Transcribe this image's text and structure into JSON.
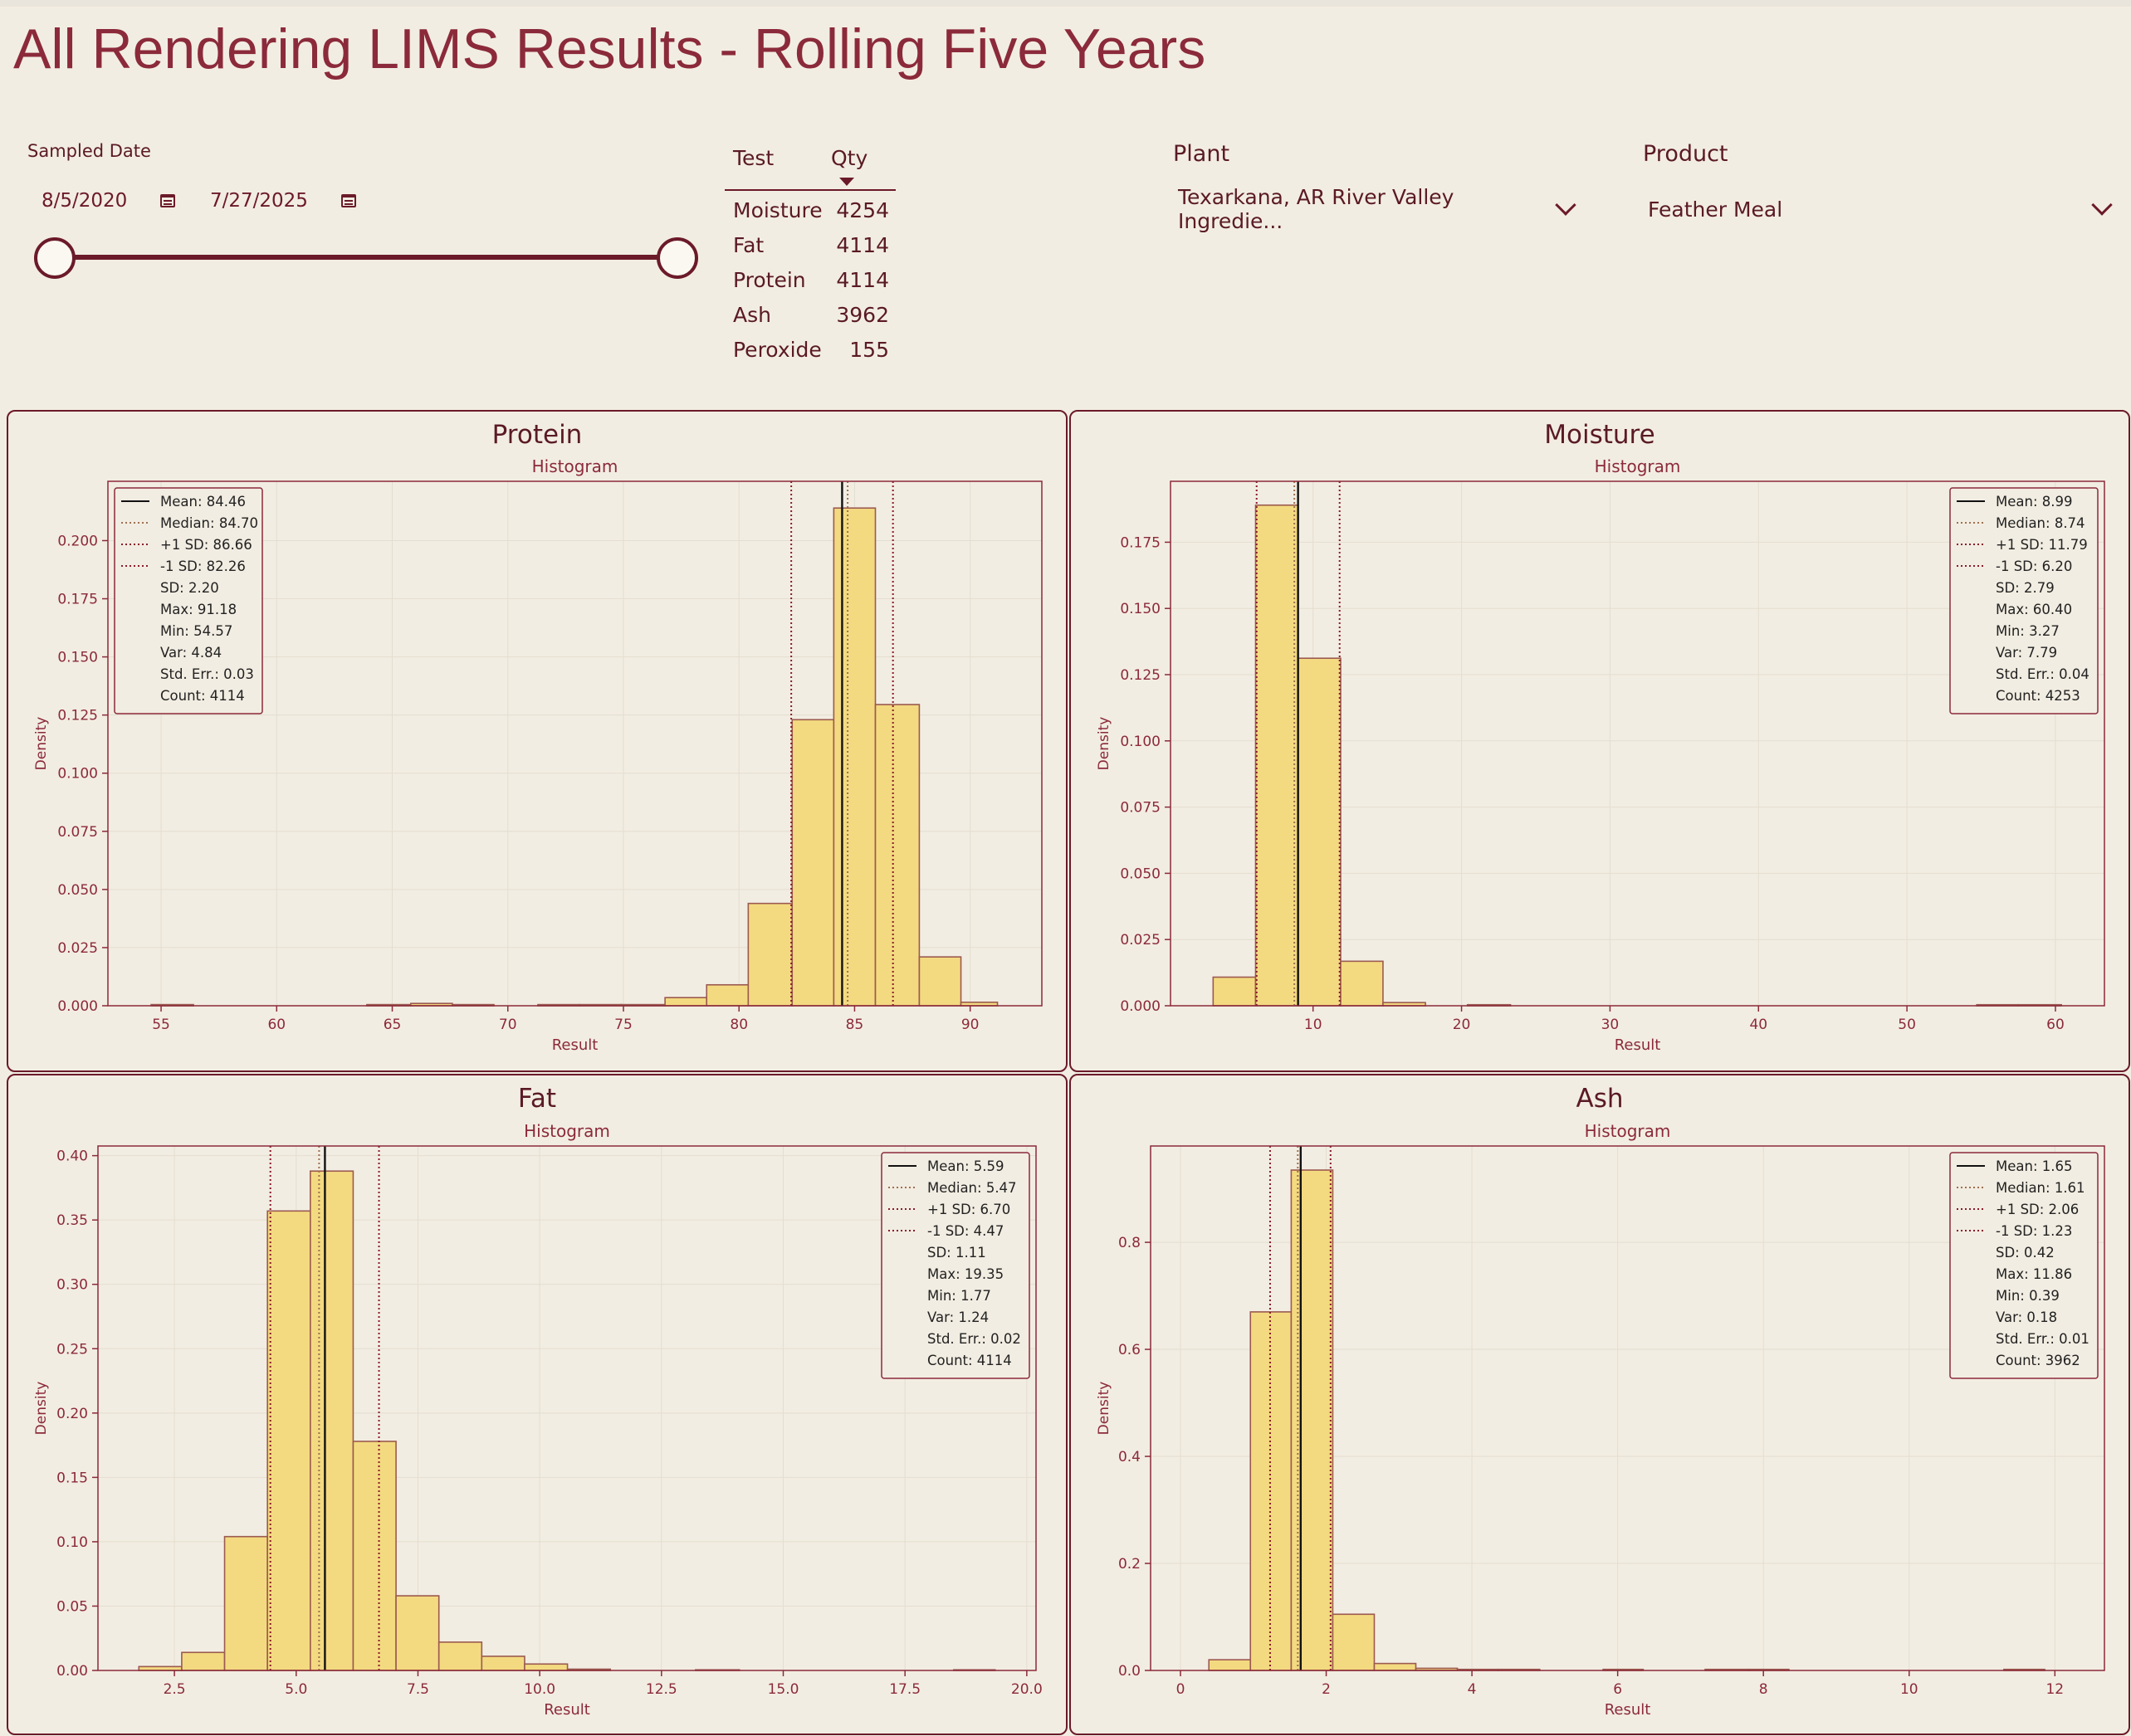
{
  "title": "All Rendering LIMS Results - Rolling Five Years",
  "sampled_date": {
    "label": "Sampled Date",
    "start": "8/5/2020",
    "end": "7/27/2025",
    "start_icon": "calendar-icon",
    "end_icon": "calendar-icon"
  },
  "qty_table": {
    "headers": [
      "Test",
      "Qty"
    ],
    "rows": [
      {
        "test": "Moisture",
        "qty": "4254"
      },
      {
        "test": "Fat",
        "qty": "4114"
      },
      {
        "test": "Protein",
        "qty": "4114"
      },
      {
        "test": "Ash",
        "qty": "3962"
      },
      {
        "test": "Peroxide",
        "qty": "155"
      }
    ]
  },
  "plant": {
    "label": "Plant",
    "value": "Texarkana, AR River Valley Ingredie..."
  },
  "product": {
    "label": "Product",
    "value": "Feather Meal"
  },
  "colors": {
    "bar": "#f3da80",
    "bar_edge": "#9b5a50",
    "accent": "#6b1a2a",
    "background": "#f2ede2"
  },
  "chart_data": [
    {
      "type": "bar",
      "panel_title": "Protein",
      "title": "Histogram",
      "xlabel": "Result",
      "ylabel": "Density",
      "xlim": [
        52.7,
        93.1
      ],
      "ylim": [
        0,
        0.2255
      ],
      "xticks": [
        55,
        60,
        65,
        70,
        75,
        80,
        85,
        90
      ],
      "xtick_labels": [
        "55",
        "60",
        "65",
        "70",
        "75",
        "80",
        "85",
        "90"
      ],
      "yticks": [
        0,
        0.025,
        0.05,
        0.075,
        0.1,
        0.125,
        0.15,
        0.175,
        0.2
      ],
      "ytick_labels": [
        "0.000",
        "0.025",
        "0.050",
        "0.075",
        "0.100",
        "0.125",
        "0.150",
        "0.175",
        "0.200"
      ],
      "bins": [
        [
          54.57,
          56.4,
          0.0005
        ],
        [
          63.9,
          65.8,
          0.0005
        ],
        [
          65.8,
          67.6,
          0.001
        ],
        [
          67.6,
          69.4,
          0.0005
        ],
        [
          71.3,
          73.1,
          0.0005
        ],
        [
          73.1,
          74.9,
          0.0005
        ],
        [
          74.9,
          76.8,
          0.0005
        ],
        [
          76.8,
          78.6,
          0.0035
        ],
        [
          78.6,
          80.4,
          0.009
        ],
        [
          80.4,
          82.3,
          0.044
        ],
        [
          82.3,
          84.1,
          0.123
        ],
        [
          84.1,
          85.9,
          0.214
        ],
        [
          85.9,
          87.8,
          0.1295
        ],
        [
          87.8,
          89.6,
          0.021
        ],
        [
          89.6,
          91.18,
          0.0015
        ]
      ],
      "lines": {
        "mean": 84.46,
        "median": 84.7,
        "plus_sd": 86.66,
        "minus_sd": 82.26
      },
      "legend_position": "upper-left",
      "legend": [
        "Mean: 84.46",
        "Median: 84.70",
        "+1 SD: 86.66",
        "-1 SD: 82.26",
        "SD: 2.20",
        "Max: 91.18",
        "Min: 54.57",
        "Var: 4.84",
        "Std. Err.: 0.03",
        "Count: 4114"
      ]
    },
    {
      "type": "bar",
      "panel_title": "Moisture",
      "title": "Histogram",
      "xlabel": "Result",
      "ylabel": "Density",
      "xlim": [
        0.4,
        63.3
      ],
      "ylim": [
        0,
        0.198
      ],
      "xticks": [
        10,
        20,
        30,
        40,
        50,
        60
      ],
      "xtick_labels": [
        "10",
        "20",
        "30",
        "40",
        "50",
        "60"
      ],
      "yticks": [
        0,
        0.025,
        0.05,
        0.075,
        0.1,
        0.125,
        0.15,
        0.175
      ],
      "ytick_labels": [
        "0.000",
        "0.025",
        "0.050",
        "0.075",
        "0.100",
        "0.125",
        "0.150",
        "0.175"
      ],
      "bins": [
        [
          3.27,
          6.13,
          0.0108
        ],
        [
          6.13,
          9.0,
          0.189
        ],
        [
          9.0,
          11.86,
          0.1312
        ],
        [
          11.86,
          14.71,
          0.0168
        ],
        [
          14.71,
          17.57,
          0.0012
        ],
        [
          20.4,
          23.3,
          0.0004
        ],
        [
          54.7,
          57.5,
          0.0004
        ],
        [
          57.5,
          60.4,
          0.0004
        ]
      ],
      "lines": {
        "mean": 8.99,
        "median": 8.74,
        "plus_sd": 11.79,
        "minus_sd": 6.2
      },
      "legend_position": "upper-right",
      "legend": [
        "Mean: 8.99",
        "Median: 8.74",
        "+1 SD: 11.79",
        "-1 SD: 6.20",
        "SD: 2.79",
        "Max: 60.40",
        "Min: 3.27",
        "Var: 7.79",
        "Std. Err.: 0.04",
        "Count: 4253"
      ]
    },
    {
      "type": "bar",
      "panel_title": "Fat",
      "title": "Histogram",
      "xlabel": "Result",
      "ylabel": "Density",
      "xlim": [
        0.93,
        20.19
      ],
      "ylim": [
        0,
        0.4075
      ],
      "xticks": [
        2.5,
        5.0,
        7.5,
        10.0,
        12.5,
        15.0,
        17.5,
        20.0
      ],
      "xtick_labels": [
        "2.5",
        "5.0",
        "7.5",
        "10.0",
        "12.5",
        "15.0",
        "17.5",
        "20.0"
      ],
      "yticks": [
        0,
        0.05,
        0.1,
        0.15,
        0.2,
        0.25,
        0.3,
        0.35,
        0.4
      ],
      "ytick_labels": [
        "0.00",
        "0.05",
        "0.10",
        "0.15",
        "0.20",
        "0.25",
        "0.30",
        "0.35",
        "0.40"
      ],
      "bins": [
        [
          1.77,
          2.65,
          0.003
        ],
        [
          2.65,
          3.53,
          0.014
        ],
        [
          3.53,
          4.41,
          0.104
        ],
        [
          4.41,
          5.29,
          0.357
        ],
        [
          5.29,
          6.17,
          0.388
        ],
        [
          6.17,
          7.05,
          0.178
        ],
        [
          7.05,
          7.93,
          0.058
        ],
        [
          7.93,
          8.81,
          0.022
        ],
        [
          8.81,
          9.69,
          0.011
        ],
        [
          9.69,
          10.57,
          0.005
        ],
        [
          10.57,
          11.45,
          0.001
        ],
        [
          13.2,
          14.1,
          0.0005
        ],
        [
          18.5,
          19.35,
          0.0005
        ]
      ],
      "lines": {
        "mean": 5.59,
        "median": 5.47,
        "plus_sd": 6.7,
        "minus_sd": 4.47
      },
      "legend_position": "upper-right",
      "legend": [
        "Mean: 5.59",
        "Median: 5.47",
        "+1 SD: 6.70",
        "-1 SD: 4.47",
        "SD: 1.11",
        "Max: 19.35",
        "Min: 1.77",
        "Var: 1.24",
        "Std. Err.: 0.02",
        "Count: 4114"
      ]
    },
    {
      "type": "bar",
      "panel_title": "Ash",
      "title": "Histogram",
      "xlabel": "Result",
      "ylabel": "Density",
      "xlim": [
        -0.41,
        12.68
      ],
      "ylim": [
        0,
        0.98
      ],
      "xticks": [
        0,
        2,
        4,
        6,
        8,
        10,
        12
      ],
      "xtick_labels": [
        "0",
        "2",
        "4",
        "6",
        "8",
        "10",
        "12"
      ],
      "yticks": [
        0,
        0.2,
        0.4,
        0.6,
        0.8
      ],
      "ytick_labels": [
        "0.0",
        "0.2",
        "0.4",
        "0.6",
        "0.8"
      ],
      "bins": [
        [
          0.39,
          0.96,
          0.02
        ],
        [
          0.96,
          1.52,
          0.67
        ],
        [
          1.52,
          2.09,
          0.935
        ],
        [
          2.09,
          2.66,
          0.105
        ],
        [
          2.66,
          3.23,
          0.013
        ],
        [
          3.23,
          3.8,
          0.004
        ],
        [
          3.8,
          4.36,
          0.002
        ],
        [
          4.36,
          4.93,
          0.002
        ],
        [
          5.8,
          6.35,
          0.002
        ],
        [
          7.2,
          7.8,
          0.002
        ],
        [
          7.8,
          8.35,
          0.002
        ],
        [
          11.3,
          11.86,
          0.002
        ]
      ],
      "lines": {
        "mean": 1.65,
        "median": 1.61,
        "plus_sd": 2.06,
        "minus_sd": 1.23
      },
      "legend_position": "upper-right",
      "legend": [
        "Mean: 1.65",
        "Median: 1.61",
        "+1 SD: 2.06",
        "-1 SD: 1.23",
        "SD: 0.42",
        "Max: 11.86",
        "Min: 0.39",
        "Var: 0.18",
        "Std. Err.: 0.01",
        "Count: 3962"
      ]
    }
  ]
}
